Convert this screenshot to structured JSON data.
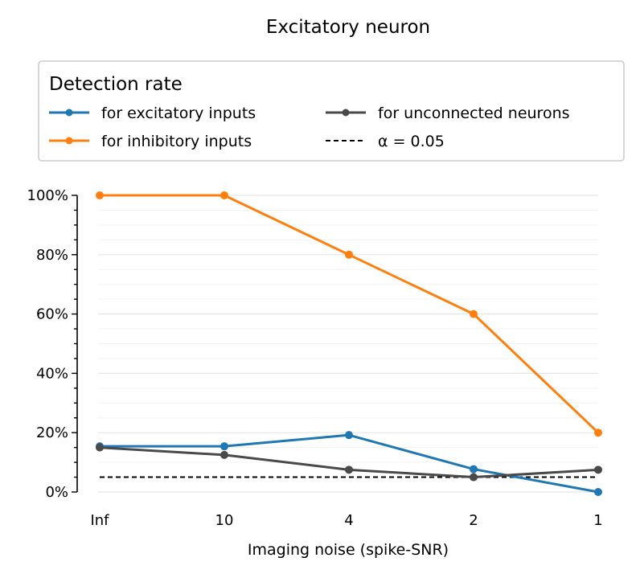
{
  "chart_data": {
    "type": "line",
    "title": "Excitatory neuron",
    "xlabel": "Imaging noise (spike-SNR)",
    "ylabel": "",
    "categories": [
      "Inf",
      "10",
      "4",
      "2",
      "1"
    ],
    "ylim": [
      0,
      1
    ],
    "yticks": [
      0,
      0.2,
      0.4,
      0.6,
      0.8,
      1.0
    ],
    "ytick_labels": [
      "0%",
      "20%",
      "40%",
      "60%",
      "80%",
      "100%"
    ],
    "grid": "horizontal",
    "legend": {
      "title": "Detection rate",
      "placement": "top"
    },
    "series": [
      {
        "name": "for excitatory inputs",
        "color": "#1f77b4",
        "style": "line-marker",
        "values": [
          0.154,
          0.154,
          0.192,
          0.077,
          0.0
        ]
      },
      {
        "name": "for inhibitory inputs",
        "color": "#ff7f0e",
        "style": "line-marker",
        "values": [
          1.0,
          1.0,
          0.8,
          0.6,
          0.2
        ]
      },
      {
        "name": "for unconnected neurons",
        "color": "#4a4a4a",
        "style": "line-marker",
        "values": [
          0.15,
          0.125,
          0.075,
          0.05,
          0.075
        ]
      },
      {
        "name": "α = 0.05",
        "color": "#000000",
        "style": "dashed",
        "values": [
          0.05,
          0.05,
          0.05,
          0.05,
          0.05
        ]
      }
    ]
  }
}
